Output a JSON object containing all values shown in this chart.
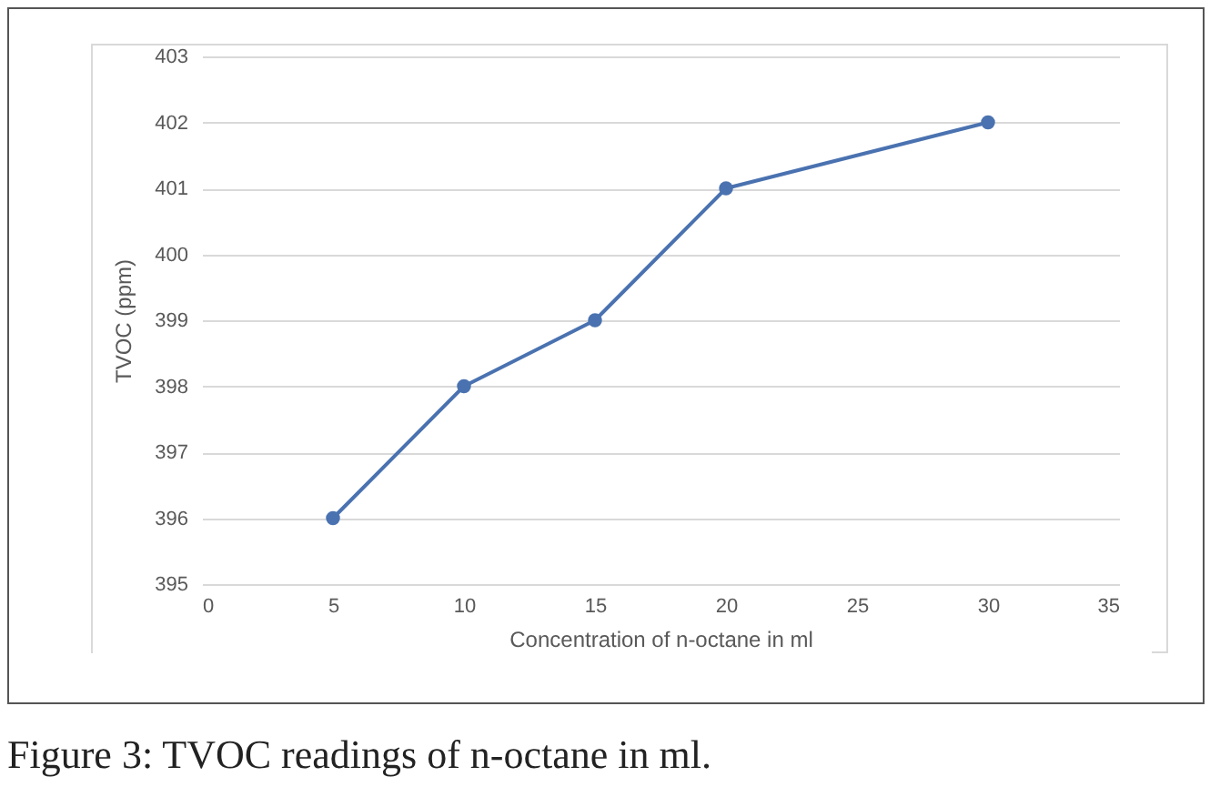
{
  "chart_data": {
    "type": "line",
    "xlabel": "Concentration of n-octane in ml",
    "ylabel": "TVOC (ppm)",
    "x": [
      5,
      10,
      15,
      20,
      30
    ],
    "series": [
      {
        "color": "#4a72b0",
        "values": [
          396,
          398,
          399,
          401,
          402
        ]
      }
    ],
    "xlim": [
      0,
      35
    ],
    "xticks": [
      0,
      5,
      10,
      15,
      20,
      25,
      30,
      35
    ],
    "ylim": [
      395,
      403
    ],
    "yticks": [
      395,
      396,
      397,
      398,
      399,
      400,
      401,
      402,
      403
    ],
    "grid": "y",
    "marker": "circle",
    "line_style": "solid",
    "annotations": [
      "Figure 3: TVOC readings of n-octane in ml."
    ]
  }
}
